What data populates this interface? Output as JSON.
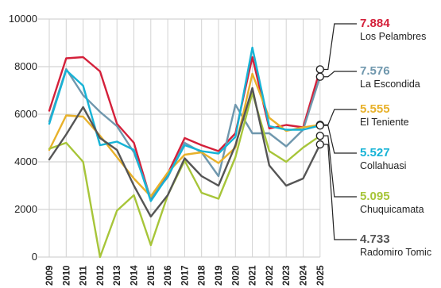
{
  "chart_data": {
    "type": "line",
    "x": [
      "2009",
      "2010",
      "2011",
      "2012",
      "2013",
      "2014",
      "2015",
      "2016",
      "2017",
      "2018",
      "2019",
      "2020",
      "2021",
      "2022",
      "2023",
      "2024",
      "2025"
    ],
    "ylim": [
      0,
      10000
    ],
    "yticks": [
      "0",
      "2000",
      "4000",
      "6000",
      "8000",
      "10000"
    ],
    "grid": true,
    "legend": "right",
    "series": [
      {
        "name": "Los Pelambres",
        "label_value": "7.884",
        "color": "#d4203a",
        "values": [
          6150,
          8350,
          8400,
          7800,
          5600,
          4800,
          2400,
          3500,
          5000,
          4700,
          4450,
          5200,
          8400,
          5400,
          5550,
          5450,
          7884
        ]
      },
      {
        "name": "La Escondida",
        "label_value": "7.576",
        "color": "#6f97ad",
        "values": [
          5700,
          7900,
          6800,
          6100,
          5500,
          4400,
          2500,
          3350,
          4800,
          4400,
          3400,
          6400,
          5200,
          5200,
          4650,
          5350,
          7576
        ]
      },
      {
        "name": "El Teniente",
        "label_value": "5.555",
        "color": "#e8b12a",
        "values": [
          4500,
          5950,
          5900,
          5100,
          4200,
          3300,
          2550,
          3550,
          4300,
          4400,
          3950,
          4600,
          7700,
          5850,
          5300,
          5450,
          5555
        ]
      },
      {
        "name": "Collahuasi",
        "label_value": "5.527",
        "color": "#16b3d6",
        "values": [
          5600,
          7850,
          7200,
          4700,
          4850,
          4500,
          2350,
          3400,
          4700,
          4450,
          4350,
          5050,
          8800,
          5500,
          5350,
          5350,
          5527
        ]
      },
      {
        "name": "Chuquicamata",
        "label_value": "5.095",
        "color": "#a7c539",
        "values": [
          4550,
          4800,
          4000,
          0,
          1950,
          2600,
          500,
          2600,
          4050,
          2700,
          2450,
          4200,
          6900,
          4450,
          4000,
          4600,
          5095
        ]
      },
      {
        "name": "Radomiro Tomic",
        "label_value": "4.733",
        "color": "#555555",
        "values": [
          4100,
          5150,
          6300,
          5000,
          4500,
          3000,
          1700,
          2600,
          4150,
          3400,
          3000,
          4700,
          7100,
          3850,
          3000,
          3300,
          4733
        ]
      }
    ]
  }
}
